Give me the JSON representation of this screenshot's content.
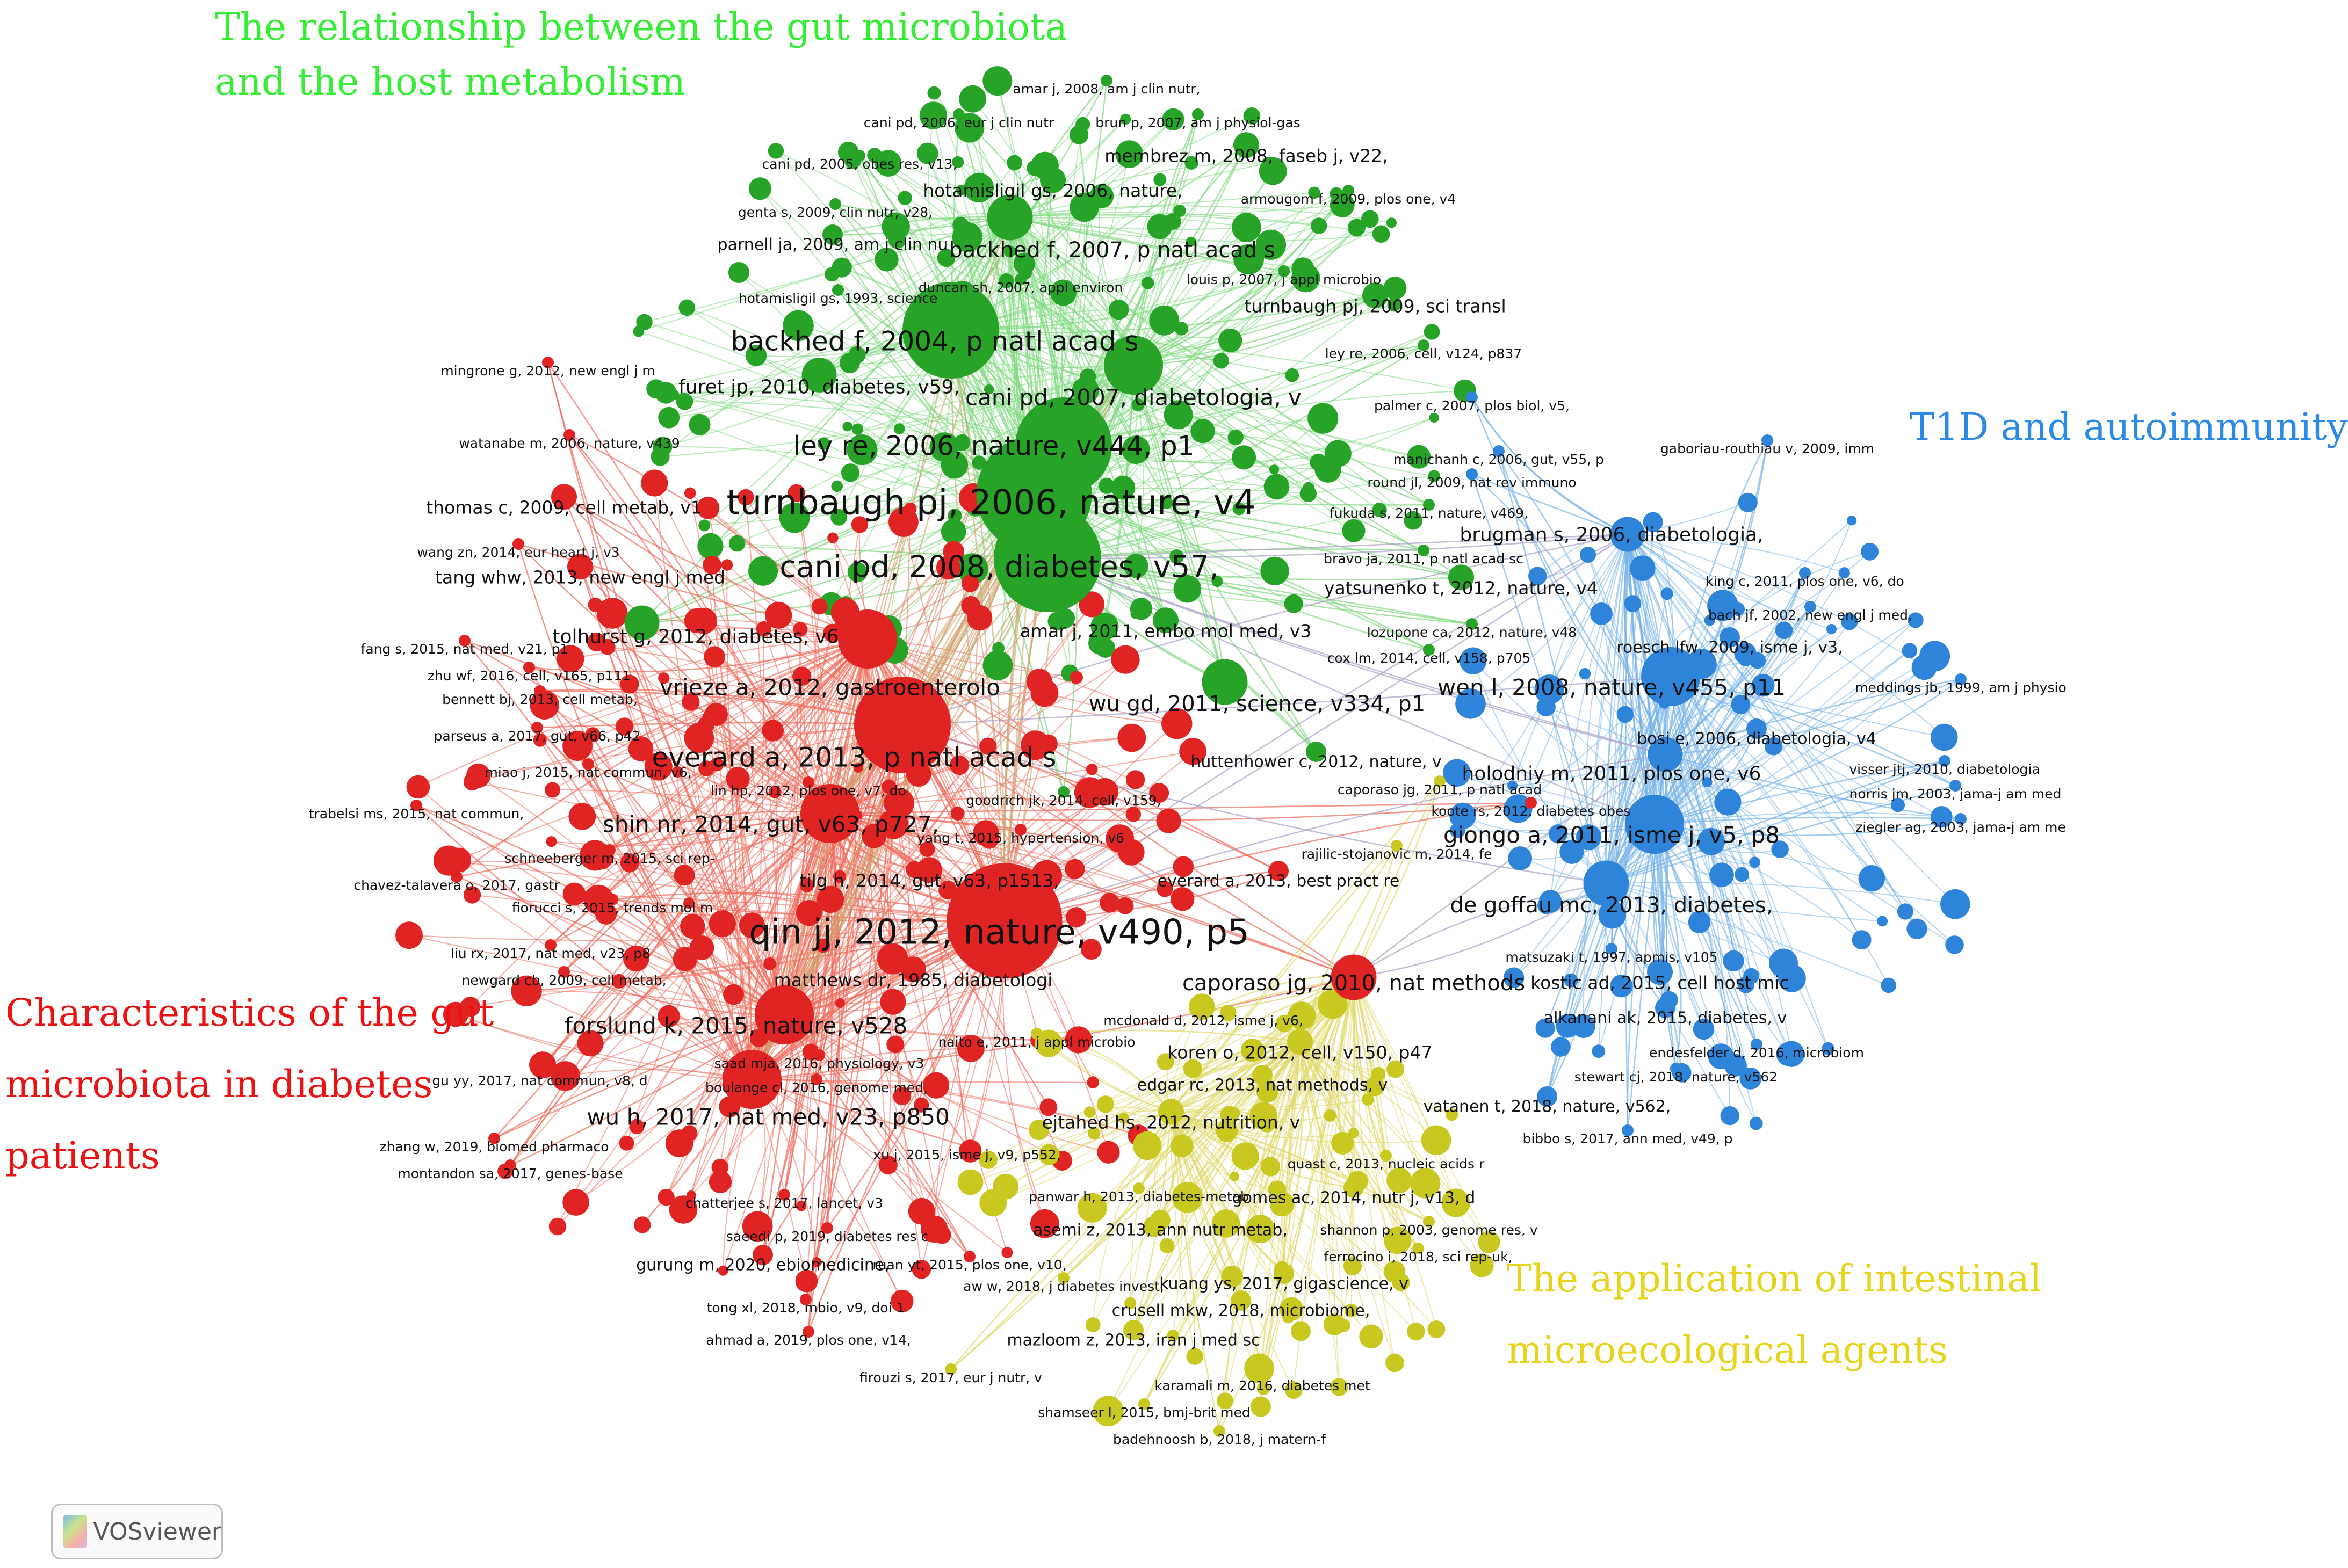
{
  "clusters": {
    "green": {
      "title_lines": [
        "The relationship between the gut microbiota",
        "and the host metabolism"
      ],
      "color": "#33ee33"
    },
    "blue": {
      "title_lines": [
        "T1D and autoimmunity"
      ],
      "color": "#2b8ae6"
    },
    "red": {
      "title_lines": [
        "Characteristics of the gut",
        "microbiota in diabetes",
        "patients"
      ],
      "color": "#ee1111"
    },
    "yellow": {
      "title_lines": [
        "The application of intestinal",
        "microecological agents"
      ],
      "color": "#e6d31a"
    }
  },
  "node_colors": {
    "green": "#27a327",
    "red": "#e02424",
    "blue": "#2d84d8",
    "yellow": "#c8c820"
  },
  "edge_colors": {
    "green": "#7fd97f",
    "red": "#f06a5a",
    "blue": "#78b4ea",
    "yellow": "#e0d96a",
    "mixed": "#a9a0c8"
  },
  "nodes": [
    {
      "label": "qin jj, 2012, nature, v490, p5",
      "cluster": "red",
      "weight": 10
    },
    {
      "label": "turnbaugh pj, 2006, nature, v4",
      "cluster": "green",
      "weight": 10
    },
    {
      "label": "cani pd, 2008, diabetes, v57,",
      "cluster": "green",
      "weight": 9
    },
    {
      "label": "ley re, 2006, nature, v444, p1",
      "cluster": "green",
      "weight": 8
    },
    {
      "label": "backhed f, 2004, p natl acad s",
      "cluster": "green",
      "weight": 8
    },
    {
      "label": "everard a, 2013, p natl acad s",
      "cluster": "red",
      "weight": 8
    },
    {
      "label": "vrieze a, 2012, gastroenterolo",
      "cluster": "red",
      "weight": 7
    },
    {
      "label": "forslund k, 2015, nature, v528",
      "cluster": "red",
      "weight": 7
    },
    {
      "label": "wu h, 2017, nat med, v23, p850",
      "cluster": "red",
      "weight": 7
    },
    {
      "label": "shin nr, 2014, gut, v63, p727,",
      "cluster": "red",
      "weight": 7
    },
    {
      "label": "cani pd, 2007, diabetologia, v",
      "cluster": "green",
      "weight": 7
    },
    {
      "label": "backhed f, 2007, p natl acad s",
      "cluster": "green",
      "weight": 6
    },
    {
      "label": "wen l, 2008, nature, v455, p11",
      "cluster": "blue",
      "weight": 7
    },
    {
      "label": "giongo a, 2011, isme j, v5, p8",
      "cluster": "blue",
      "weight": 7
    },
    {
      "label": "de goffau mc, 2013, diabetes,",
      "cluster": "blue",
      "weight": 6
    },
    {
      "label": "caporaso jg, 2010, nat methods",
      "cluster": "red",
      "weight": 6
    },
    {
      "label": "wu gd, 2011, science, v334, p1",
      "cluster": "green",
      "weight": 6
    },
    {
      "label": "tolhurst g, 2012, diabetes, v6",
      "cluster": "green",
      "weight": 5
    },
    {
      "label": "holodniy m, 2011, plos one, v6",
      "cluster": "blue",
      "weight": 5
    },
    {
      "label": "brugman s, 2006, diabetologia,",
      "cluster": "blue",
      "weight": 5
    },
    {
      "label": "furet jp, 2010, diabetes, v59,",
      "cluster": "green",
      "weight": 5
    },
    {
      "label": "thomas c, 2009, cell metab, v1",
      "cluster": "red",
      "weight": 4
    },
    {
      "label": "tang whw, 2013, new engl j med",
      "cluster": "red",
      "weight": 4
    },
    {
      "label": "yatsunenko t, 2012, nature, v4",
      "cluster": "green",
      "weight": 4
    },
    {
      "label": "turnbaugh pj, 2009, sci transl",
      "cluster": "green",
      "weight": 4
    },
    {
      "label": "membrez m, 2008, faseb j, v22,",
      "cluster": "green",
      "weight": 4
    },
    {
      "label": "hotamisligil gs, 2006, nature,",
      "cluster": "green",
      "weight": 4
    },
    {
      "label": "parnell ja, 2009, am j clin nu",
      "cluster": "green",
      "weight": 3
    },
    {
      "label": "amar j, 2011, embo mol med, v3",
      "cluster": "green",
      "weight": 4
    },
    {
      "label": "kostic ad, 2015, cell host mic",
      "cluster": "blue",
      "weight": 4
    },
    {
      "label": "alkanani ak, 2015, diabetes, v",
      "cluster": "blue",
      "weight": 3
    },
    {
      "label": "koren o, 2012, cell, v150, p47",
      "cluster": "yellow",
      "weight": 4
    },
    {
      "label": "edgar rc, 2013, nat methods, v",
      "cluster": "yellow",
      "weight": 3
    },
    {
      "label": "ejtahed hs, 2012, nutrition, v",
      "cluster": "yellow",
      "weight": 4
    },
    {
      "label": "vatanen t, 2018, nature, v562,",
      "cluster": "blue",
      "weight": 3
    },
    {
      "label": "huttenhower c, 2012, nature, v",
      "cluster": "green",
      "weight": 3
    },
    {
      "label": "everard a, 2013, best pract re",
      "cluster": "red",
      "weight": 3
    },
    {
      "label": "tilg h, 2014, gut, v63, p1513,",
      "cluster": "red",
      "weight": 4
    },
    {
      "label": "matthews dr, 1985, diabetologi",
      "cluster": "red",
      "weight": 4
    },
    {
      "label": "gomes ac, 2014, nutr j, v13, d",
      "cluster": "yellow",
      "weight": 3
    },
    {
      "label": "asemi z, 2013, ann nutr metab,",
      "cluster": "yellow",
      "weight": 3
    },
    {
      "label": "gurung m, 2020, ebiomedicine,",
      "cluster": "red",
      "weight": 3
    },
    {
      "label": "kuang ys, 2017, gigascience, v",
      "cluster": "yellow",
      "weight": 3
    },
    {
      "label": "crusell mkw, 2018, microbiome,",
      "cluster": "yellow",
      "weight": 3
    },
    {
      "label": "mazloom z, 2013, iran j med sc",
      "cluster": "yellow",
      "weight": 3
    },
    {
      "label": "karamali m, 2016, diabetes met",
      "cluster": "yellow",
      "weight": 2
    },
    {
      "label": "shamseer l, 2015, bmj-brit med",
      "cluster": "yellow",
      "weight": 2
    },
    {
      "label": "badehnoosh b, 2018, j matern-f",
      "cluster": "yellow",
      "weight": 2
    },
    {
      "label": "firouzi s, 2017, eur j nutr, v",
      "cluster": "yellow",
      "weight": 2
    },
    {
      "label": "amar j, 2008, am j clin nutr,",
      "cluster": "green",
      "weight": 2
    },
    {
      "label": "cani pd, 2006, eur j clin nutr",
      "cluster": "green",
      "weight": 2
    },
    {
      "label": "brun p, 2007, am j physiol-gas",
      "cluster": "green",
      "weight": 2
    },
    {
      "label": "cani pd, 2005, obes res, v13,",
      "cluster": "green",
      "weight": 2
    },
    {
      "label": "genta s, 2009, clin nutr, v28,",
      "cluster": "green",
      "weight": 2
    },
    {
      "label": "armougom f, 2009, plos one, v4",
      "cluster": "green",
      "weight": 2
    },
    {
      "label": "duncan sh, 2007, appl environ",
      "cluster": "green",
      "weight": 2
    },
    {
      "label": "louis p, 2007, j appl microbio",
      "cluster": "green",
      "weight": 2
    },
    {
      "label": "hotamisligil gs, 1993, science",
      "cluster": "green",
      "weight": 2
    },
    {
      "label": "ley re, 2006, cell, v124, p837",
      "cluster": "green",
      "weight": 2
    },
    {
      "label": "mingrone g, 2012, new engl j m",
      "cluster": "red",
      "weight": 2
    },
    {
      "label": "palmer c, 2007, plos biol, v5,",
      "cluster": "blue",
      "weight": 2
    },
    {
      "label": "gaboriau-routhiau v, 2009, imm",
      "cluster": "blue",
      "weight": 2
    },
    {
      "label": "watanabe m, 2006, nature, v439",
      "cluster": "red",
      "weight": 2
    },
    {
      "label": "manichanh c, 2006, gut, v55, p",
      "cluster": "blue",
      "weight": 2
    },
    {
      "label": "round jl, 2009, nat rev immuno",
      "cluster": "blue",
      "weight": 2
    },
    {
      "label": "fukuda s, 2011, nature, v469,",
      "cluster": "green",
      "weight": 2
    },
    {
      "label": "bravo ja, 2011, p natl acad sc",
      "cluster": "green",
      "weight": 2
    },
    {
      "label": "king c, 2011, plos one, v6, do",
      "cluster": "blue",
      "weight": 2
    },
    {
      "label": "bach jf, 2002, new engl j med,",
      "cluster": "blue",
      "weight": 2
    },
    {
      "label": "roesch lfw, 2009, isme j, v3,",
      "cluster": "blue",
      "weight": 3
    },
    {
      "label": "lozupone ca, 2012, nature, v48",
      "cluster": "green",
      "weight": 2
    },
    {
      "label": "cox lm, 2014, cell, v158, p705",
      "cluster": "green",
      "weight": 2
    },
    {
      "label": "meddings jb, 1999, am j physio",
      "cluster": "blue",
      "weight": 2
    },
    {
      "label": "bosi e, 2006, diabetologia, v4",
      "cluster": "blue",
      "weight": 3
    },
    {
      "label": "visser jtj, 2010, diabetologia",
      "cluster": "blue",
      "weight": 2
    },
    {
      "label": "norris jm, 2003, jama-j am med",
      "cluster": "blue",
      "weight": 2
    },
    {
      "label": "ziegler ag, 2003, jama-j am me",
      "cluster": "blue",
      "weight": 2
    },
    {
      "label": "wang zn, 2014, eur heart j, v3",
      "cluster": "red",
      "weight": 2
    },
    {
      "label": "fang s, 2015, nat med, v21, p1",
      "cluster": "red",
      "weight": 2
    },
    {
      "label": "zhu wf, 2016, cell, v165, p111",
      "cluster": "red",
      "weight": 2
    },
    {
      "label": "bennett bj, 2013, cell metab,",
      "cluster": "red",
      "weight": 2
    },
    {
      "label": "parseus a, 2017, gut, v66, p42",
      "cluster": "red",
      "weight": 2
    },
    {
      "label": "miao j, 2015, nat commun, v6,",
      "cluster": "red",
      "weight": 2
    },
    {
      "label": "lin hp, 2012, plos one, v7, do",
      "cluster": "red",
      "weight": 2
    },
    {
      "label": "trabelsi ms, 2015, nat commun,",
      "cluster": "red",
      "weight": 2
    },
    {
      "label": "goodrich jk, 2014, cell, v159,",
      "cluster": "green",
      "weight": 2
    },
    {
      "label": "caporaso jg, 2011, p natl acad",
      "cluster": "yellow",
      "weight": 2
    },
    {
      "label": "koote rs, 2012, diabetes obes",
      "cluster": "red",
      "weight": 2
    },
    {
      "label": "yang t, 2015, hypertension, v6",
      "cluster": "red",
      "weight": 2
    },
    {
      "label": "rajilic-stojanovic m, 2014, fe",
      "cluster": "yellow",
      "weight": 2
    },
    {
      "label": "schneeberger m, 2015, sci rep-",
      "cluster": "red",
      "weight": 2
    },
    {
      "label": "chavez-talavera o, 2017, gastr",
      "cluster": "red",
      "weight": 2
    },
    {
      "label": "fiorucci s, 2015, trends mol m",
      "cluster": "red",
      "weight": 2
    },
    {
      "label": "liu rx, 2017, nat med, v23, p8",
      "cluster": "red",
      "weight": 2
    },
    {
      "label": "newgard cb, 2009, cell metab,",
      "cluster": "red",
      "weight": 2
    },
    {
      "label": "matsuzaki t, 1997, apmis, v105",
      "cluster": "blue",
      "weight": 2
    },
    {
      "label": "mcdonald d, 2012, isme j, v6,",
      "cluster": "yellow",
      "weight": 2
    },
    {
      "label": "naito e, 2011, j appl microbio",
      "cluster": "yellow",
      "weight": 2
    },
    {
      "label": "endesfelder d, 2016, microbiom",
      "cluster": "blue",
      "weight": 2
    },
    {
      "label": "stewart cj, 2018, nature, v562",
      "cluster": "blue",
      "weight": 2
    },
    {
      "label": "saad mja, 2016, physiology, v3",
      "cluster": "red",
      "weight": 2
    },
    {
      "label": "gu yy, 2017, nat commun, v8, d",
      "cluster": "red",
      "weight": 2
    },
    {
      "label": "boulange cl, 2016, genome med,",
      "cluster": "red",
      "weight": 2
    },
    {
      "label": "bibbo s, 2017, ann med, v49, p",
      "cluster": "blue",
      "weight": 2
    },
    {
      "label": "zhang w, 2019, biomed pharmaco",
      "cluster": "red",
      "weight": 2
    },
    {
      "label": "xu j, 2015, isme j, v9, p552,",
      "cluster": "red",
      "weight": 2
    },
    {
      "label": "quast c, 2013, nucleic acids r",
      "cluster": "yellow",
      "weight": 2
    },
    {
      "label": "montandon sa, 2017, genes-base",
      "cluster": "red",
      "weight": 2
    },
    {
      "label": "chatterjee s, 2017, lancet, v3",
      "cluster": "red",
      "weight": 2
    },
    {
      "label": "panwar h, 2013, diabetes-metab",
      "cluster": "yellow",
      "weight": 2
    },
    {
      "label": "shannon p, 2003, genome res, v",
      "cluster": "yellow",
      "weight": 2
    },
    {
      "label": "saeedi p, 2019, diabetes res c",
      "cluster": "red",
      "weight": 2
    },
    {
      "label": "ferrocino i, 2018, sci rep-uk,",
      "cluster": "yellow",
      "weight": 2
    },
    {
      "label": "ruan yt, 2015, plos one, v10,",
      "cluster": "red",
      "weight": 2
    },
    {
      "label": "aw w, 2018, j diabetes invest,",
      "cluster": "yellow",
      "weight": 2
    },
    {
      "label": "tong xl, 2018, mbio, v9, doi 1",
      "cluster": "red",
      "weight": 2
    },
    {
      "label": "ahmad a, 2019, plos one, v14,",
      "cluster": "red",
      "weight": 2
    }
  ],
  "footer": {
    "button_label": "VOSviewer"
  }
}
